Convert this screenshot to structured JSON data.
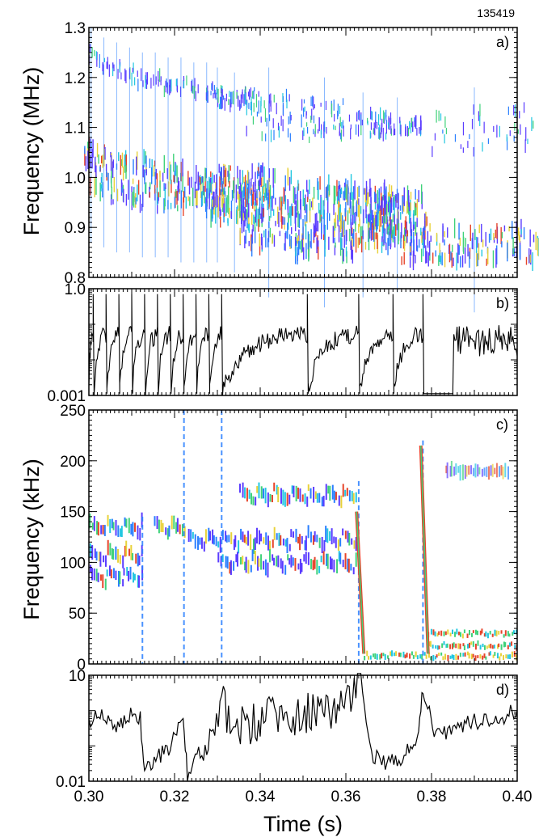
{
  "figure": {
    "shot_number": "135419",
    "x_axis_label": "Time (s)",
    "x_range": [
      0.3,
      0.4
    ],
    "x_ticks": [
      "0.30",
      "0.32",
      "0.34",
      "0.36",
      "0.38",
      "0.40"
    ],
    "x_tick_values": [
      0.3,
      0.32,
      0.34,
      0.36,
      0.38,
      0.4
    ]
  },
  "panels": [
    {
      "id": "a",
      "label": "a)",
      "ylabel": "Frequency (MHz)",
      "ylim": [
        0.8,
        1.3
      ],
      "yticks": [
        "0.8",
        "0.9",
        "1.0",
        "1.1",
        "1.2",
        "1.3"
      ],
      "ytick_values": [
        0.8,
        0.9,
        1.0,
        1.1,
        1.2,
        1.3
      ]
    },
    {
      "id": "b",
      "label": "b)",
      "ylabel": "",
      "ylim": [
        0.001,
        1.0
      ],
      "scale": "log",
      "yticks": [
        "0.001",
        "1.0"
      ],
      "ytick_values": [
        0.001,
        1.0
      ]
    },
    {
      "id": "c",
      "label": "c)",
      "ylabel": "Frequency (kHz)",
      "ylim": [
        0,
        250
      ],
      "yticks": [
        "0",
        "50",
        "100",
        "150",
        "200",
        "250"
      ],
      "ytick_values": [
        0,
        50,
        100,
        150,
        200,
        250
      ]
    },
    {
      "id": "d",
      "label": "d)",
      "ylabel": "",
      "ylim": [
        0.01,
        10
      ],
      "scale": "log",
      "yticks": [
        "0.01",
        "10"
      ],
      "ytick_values": [
        0.01,
        10
      ]
    }
  ],
  "chart_data": [
    {
      "type": "heatmap",
      "panel": "a",
      "xlabel": "Time (s)",
      "ylabel": "Frequency (MHz)",
      "ylim": [
        0.8,
        1.3
      ],
      "xlim": [
        0.3,
        0.4
      ],
      "colors": [
        "#5a3cff",
        "#2a7fff",
        "#22c7e0",
        "#3fd27a",
        "#e8d23a",
        "#e6442a"
      ],
      "bursts": [
        {
          "t": 0.3005,
          "f_lo": 0.97,
          "f_hi": 1.07,
          "upper": [
            1.23,
            1.26
          ]
        },
        {
          "t": 0.3035,
          "f_lo": 0.96,
          "f_hi": 1.06,
          "upper": [
            1.21,
            1.24
          ]
        },
        {
          "t": 0.3065,
          "f_lo": 0.95,
          "f_hi": 1.05,
          "upper": [
            1.2,
            1.23
          ]
        },
        {
          "t": 0.3095,
          "f_lo": 0.95,
          "f_hi": 1.04,
          "upper": [
            1.19,
            1.22
          ]
        },
        {
          "t": 0.3125,
          "f_lo": 0.94,
          "f_hi": 1.04,
          "upper": [
            1.18,
            1.21
          ]
        },
        {
          "t": 0.3155,
          "f_lo": 0.94,
          "f_hi": 1.03,
          "upper": [
            1.18,
            1.21
          ]
        },
        {
          "t": 0.3185,
          "f_lo": 0.94,
          "f_hi": 1.03,
          "upper": [
            1.17,
            1.2
          ]
        },
        {
          "t": 0.3215,
          "f_lo": 0.93,
          "f_hi": 1.02,
          "upper": [
            1.17,
            1.2
          ]
        },
        {
          "t": 0.3245,
          "f_lo": 0.93,
          "f_hi": 1.01,
          "upper": [
            1.16,
            1.19
          ]
        },
        {
          "t": 0.3275,
          "f_lo": 0.93,
          "f_hi": 1.01,
          "upper": [
            1.16,
            1.19
          ]
        },
        {
          "t": 0.33,
          "f_lo": 0.93,
          "f_hi": 1.0,
          "upper": [
            1.16,
            1.18
          ]
        },
        {
          "t": 0.334,
          "f_lo": 0.91,
          "f_hi": 1.02,
          "upper": [
            1.14,
            1.17
          ]
        },
        {
          "t": 0.342,
          "f_lo": 0.86,
          "f_hi": 1.01,
          "upper": [
            1.08,
            1.18
          ]
        },
        {
          "t": 0.355,
          "f_lo": 0.84,
          "f_hi": 0.99,
          "upper": [
            1.07,
            1.16
          ]
        },
        {
          "t": 0.364,
          "f_lo": 0.86,
          "f_hi": 0.98,
          "upper": [
            1.08,
            1.13
          ]
        },
        {
          "t": 0.372,
          "f_lo": 0.87,
          "f_hi": 0.97,
          "upper": [
            1.09,
            1.12
          ]
        },
        {
          "t": 0.39,
          "f_lo": 0.83,
          "f_hi": 0.9,
          "upper": [
            1.05,
            1.14
          ]
        }
      ]
    },
    {
      "type": "line",
      "panel": "b",
      "ylim": [
        0.001,
        1.0
      ],
      "scale": "log",
      "crash_times": [
        0.301,
        0.304,
        0.307,
        0.31,
        0.313,
        0.316,
        0.319,
        0.322,
        0.325,
        0.328,
        0.331,
        0.351,
        0.363,
        0.371,
        0.378
      ],
      "peak_value": 1.0,
      "floor_value": 0.001
    },
    {
      "type": "heatmap",
      "panel": "c",
      "xlabel": "Time (s)",
      "ylabel": "Frequency (kHz)",
      "ylim": [
        0,
        250
      ],
      "xlim": [
        0.3,
        0.4
      ],
      "colors": [
        "#5a3cff",
        "#2a7fff",
        "#22c7e0",
        "#3fd27a",
        "#e8d23a",
        "#e6442a"
      ],
      "bands": [
        {
          "t0": 0.3,
          "t1": 0.3125,
          "f": 140
        },
        {
          "t0": 0.3,
          "t1": 0.3125,
          "f": 113
        },
        {
          "t0": 0.3,
          "t1": 0.3125,
          "f": 92
        },
        {
          "t0": 0.315,
          "t1": 0.3225,
          "f": 140
        },
        {
          "t0": 0.323,
          "t1": 0.3625,
          "f": 128
        },
        {
          "t0": 0.33,
          "t1": 0.3625,
          "f": 105
        },
        {
          "t0": 0.335,
          "t1": 0.3625,
          "f": 172
        },
        {
          "t0": 0.364,
          "t1": 0.4,
          "f": 8
        },
        {
          "t0": 0.379,
          "t1": 0.4,
          "f": 18
        },
        {
          "t0": 0.379,
          "t1": 0.4,
          "f": 30
        },
        {
          "t0": 0.383,
          "t1": 0.398,
          "f": 190
        }
      ],
      "spikes": [
        {
          "t": 0.3125,
          "f_top": 145
        },
        {
          "t": 0.3222,
          "f_top": 250
        },
        {
          "t": 0.331,
          "f_top": 250
        },
        {
          "t": 0.363,
          "f_top": 180
        },
        {
          "t": 0.378,
          "f_top": 220
        }
      ]
    },
    {
      "type": "line",
      "panel": "d",
      "ylim": [
        0.01,
        10
      ],
      "scale": "log",
      "x": [
        0.3,
        0.303,
        0.306,
        0.309,
        0.312,
        0.313,
        0.316,
        0.319,
        0.322,
        0.323,
        0.326,
        0.329,
        0.331,
        0.335,
        0.34,
        0.345,
        0.35,
        0.355,
        0.36,
        0.3635,
        0.366,
        0.37,
        0.374,
        0.377,
        0.378,
        0.381,
        0.385,
        0.39,
        0.395,
        0.4
      ],
      "y": [
        0.5,
        0.9,
        0.3,
        0.7,
        0.6,
        0.02,
        0.05,
        0.1,
        0.9,
        0.015,
        0.08,
        0.3,
        1.5,
        0.3,
        0.6,
        0.9,
        0.7,
        1.3,
        1.0,
        12.0,
        0.05,
        0.03,
        0.06,
        0.2,
        5.0,
        0.2,
        0.3,
        0.5,
        0.6,
        1.0
      ]
    }
  ]
}
